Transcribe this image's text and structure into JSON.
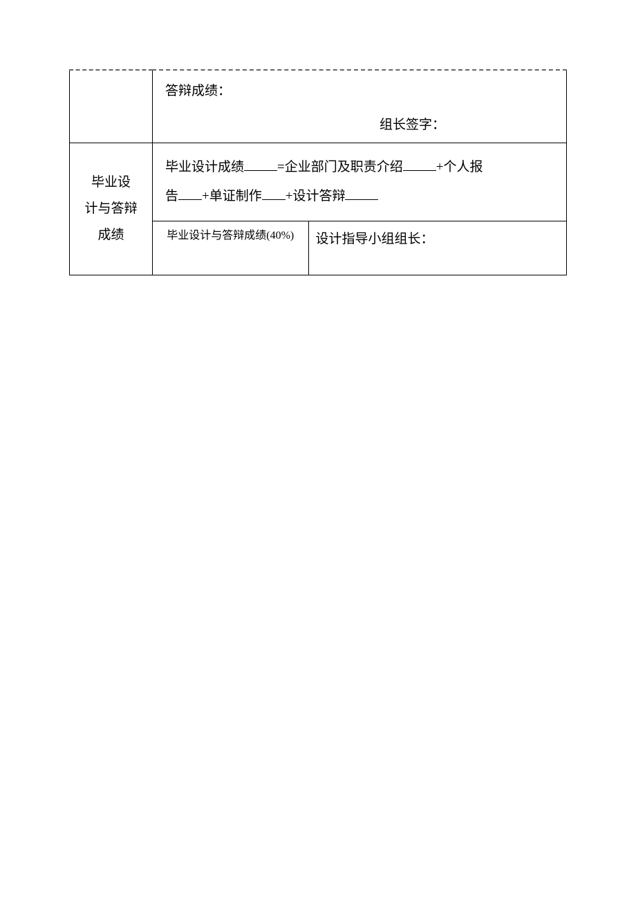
{
  "table": {
    "border_color": "#000000",
    "dashed_border_color": "#666666",
    "background_color": "#ffffff",
    "text_color": "#000000",
    "font_family": "SimSun",
    "row1": {
      "label": "",
      "score_label": "答辩成绩：",
      "signature_label": "组长签字："
    },
    "row2": {
      "label_line1": "毕业设",
      "label_line2": "计与答辩",
      "label_line3": "成绩",
      "formula_part1": "毕业设计成绩",
      "formula_part2": "=企业部门及职责介绍",
      "formula_part3": "+个人报",
      "formula_part4": "告",
      "formula_part5": "+单证制作",
      "formula_part6": "+设计答辩",
      "bottom_left_label": "毕业设计与答辩成绩(40%)",
      "bottom_right_label": "设计指导小组组长："
    },
    "fontsize_main": 19,
    "fontsize_small": 16,
    "col_label_width": 120,
    "bottom_left_width": 225
  }
}
